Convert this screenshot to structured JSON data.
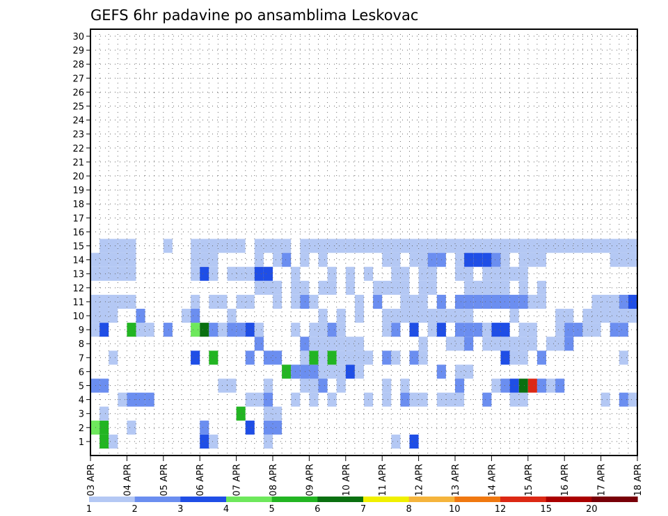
{
  "chart_data": {
    "type": "heatmap",
    "title": "GEFS 6hr padavine po ansamblima Leskovac",
    "xlabel": "",
    "ylabel": "",
    "x_tick_labels": [
      "03 APR",
      "04 APR",
      "05 APR",
      "06 APR",
      "07 APR",
      "08 APR",
      "09 APR",
      "10 APR",
      "11 APR",
      "12 APR",
      "13 APR",
      "14 APR",
      "15 APR",
      "16 APR",
      "17 APR",
      "18 APR"
    ],
    "y_tick_labels": [
      "1",
      "2",
      "3",
      "4",
      "5",
      "6",
      "7",
      "8",
      "9",
      "10",
      "11",
      "12",
      "13",
      "14",
      "15",
      "16",
      "17",
      "18",
      "19",
      "20",
      "21",
      "22",
      "23",
      "24",
      "25",
      "26",
      "27",
      "28",
      "29",
      "30"
    ],
    "xlim": [
      0,
      60
    ],
    "ylim": [
      0,
      30.5
    ],
    "x_unit": "6hr steps from 03 APR 00Z",
    "grid": true,
    "colorbar": {
      "ticks": [
        "1",
        "2",
        "3",
        "4",
        "5",
        "6",
        "7",
        "8",
        "10",
        "12",
        "15",
        "20"
      ],
      "colors": [
        "#b4c8f4",
        "#6b8ef0",
        "#1f4ee6",
        "#6ee85c",
        "#22b522",
        "#0a7010",
        "#f0f000",
        "#f5b43c",
        "#f07810",
        "#dc2814",
        "#aa0000",
        "#780008"
      ]
    },
    "cells": [
      [
        1,
        1,
        5
      ],
      [
        1,
        2,
        1
      ],
      [
        1,
        12,
        3
      ],
      [
        1,
        13,
        1
      ],
      [
        1,
        19,
        1
      ],
      [
        1,
        33,
        1
      ],
      [
        1,
        35,
        3
      ],
      [
        2,
        0,
        4
      ],
      [
        2,
        1,
        5
      ],
      [
        2,
        4,
        1
      ],
      [
        2,
        12,
        2
      ],
      [
        2,
        17,
        3
      ],
      [
        2,
        19,
        2
      ],
      [
        2,
        20,
        2
      ],
      [
        3,
        1,
        1
      ],
      [
        3,
        16,
        5
      ],
      [
        3,
        19,
        1
      ],
      [
        3,
        20,
        1
      ],
      [
        4,
        3,
        1
      ],
      [
        4,
        4,
        2
      ],
      [
        4,
        5,
        2
      ],
      [
        4,
        6,
        2
      ],
      [
        4,
        17,
        1
      ],
      [
        4,
        18,
        1
      ],
      [
        4,
        19,
        2
      ],
      [
        4,
        22,
        1
      ],
      [
        4,
        24,
        1
      ],
      [
        4,
        26,
        1
      ],
      [
        4,
        30,
        1
      ],
      [
        4,
        32,
        1
      ],
      [
        4,
        34,
        2
      ],
      [
        4,
        35,
        1
      ],
      [
        4,
        36,
        1
      ],
      [
        4,
        38,
        1
      ],
      [
        4,
        39,
        1
      ],
      [
        4,
        40,
        1
      ],
      [
        4,
        43,
        2
      ],
      [
        4,
        46,
        1
      ],
      [
        4,
        47,
        1
      ],
      [
        4,
        56,
        1
      ],
      [
        4,
        58,
        2
      ],
      [
        4,
        59,
        1
      ],
      [
        5,
        0,
        2
      ],
      [
        5,
        1,
        2
      ],
      [
        5,
        14,
        1
      ],
      [
        5,
        15,
        1
      ],
      [
        5,
        19,
        1
      ],
      [
        5,
        23,
        1
      ],
      [
        5,
        24,
        1
      ],
      [
        5,
        25,
        2
      ],
      [
        5,
        27,
        1
      ],
      [
        5,
        32,
        1
      ],
      [
        5,
        34,
        1
      ],
      [
        5,
        40,
        2
      ],
      [
        5,
        44,
        1
      ],
      [
        5,
        45,
        2
      ],
      [
        5,
        46,
        3
      ],
      [
        5,
        47,
        6
      ],
      [
        5,
        48,
        10
      ],
      [
        5,
        49,
        2
      ],
      [
        5,
        50,
        1
      ],
      [
        5,
        51,
        2
      ],
      [
        6,
        21,
        5
      ],
      [
        6,
        22,
        2
      ],
      [
        6,
        23,
        2
      ],
      [
        6,
        24,
        2
      ],
      [
        6,
        25,
        1
      ],
      [
        6,
        26,
        1
      ],
      [
        6,
        27,
        1
      ],
      [
        6,
        28,
        3
      ],
      [
        6,
        29,
        1
      ],
      [
        6,
        38,
        2
      ],
      [
        6,
        40,
        1
      ],
      [
        6,
        41,
        1
      ],
      [
        7,
        2,
        1
      ],
      [
        7,
        11,
        3
      ],
      [
        7,
        13,
        5
      ],
      [
        7,
        17,
        2
      ],
      [
        7,
        19,
        2
      ],
      [
        7,
        20,
        2
      ],
      [
        7,
        23,
        1
      ],
      [
        7,
        24,
        5
      ],
      [
        7,
        25,
        1
      ],
      [
        7,
        26,
        5
      ],
      [
        7,
        27,
        1
      ],
      [
        7,
        28,
        1
      ],
      [
        7,
        29,
        1
      ],
      [
        7,
        30,
        1
      ],
      [
        7,
        32,
        2
      ],
      [
        7,
        33,
        1
      ],
      [
        7,
        35,
        2
      ],
      [
        7,
        36,
        1
      ],
      [
        7,
        45,
        3
      ],
      [
        7,
        46,
        1
      ],
      [
        7,
        47,
        1
      ],
      [
        7,
        49,
        2
      ],
      [
        7,
        58,
        1
      ],
      [
        8,
        18,
        2
      ],
      [
        8,
        23,
        2
      ],
      [
        8,
        24,
        1
      ],
      [
        8,
        25,
        1
      ],
      [
        8,
        26,
        1
      ],
      [
        8,
        27,
        1
      ],
      [
        8,
        28,
        1
      ],
      [
        8,
        29,
        1
      ],
      [
        8,
        36,
        1
      ],
      [
        8,
        39,
        1
      ],
      [
        8,
        40,
        1
      ],
      [
        8,
        41,
        2
      ],
      [
        8,
        43,
        1
      ],
      [
        8,
        44,
        1
      ],
      [
        8,
        45,
        1
      ],
      [
        8,
        46,
        1
      ],
      [
        8,
        47,
        1
      ],
      [
        8,
        48,
        1
      ],
      [
        8,
        50,
        1
      ],
      [
        8,
        51,
        1
      ],
      [
        8,
        52,
        2
      ],
      [
        9,
        0,
        1
      ],
      [
        9,
        1,
        3
      ],
      [
        9,
        4,
        5
      ],
      [
        9,
        5,
        1
      ],
      [
        9,
        6,
        1
      ],
      [
        9,
        8,
        2
      ],
      [
        9,
        11,
        4
      ],
      [
        9,
        12,
        6
      ],
      [
        9,
        13,
        2
      ],
      [
        9,
        14,
        1
      ],
      [
        9,
        15,
        2
      ],
      [
        9,
        16,
        2
      ],
      [
        9,
        17,
        3
      ],
      [
        9,
        18,
        1
      ],
      [
        9,
        22,
        1
      ],
      [
        9,
        24,
        1
      ],
      [
        9,
        25,
        1
      ],
      [
        9,
        26,
        2
      ],
      [
        9,
        27,
        1
      ],
      [
        9,
        32,
        1
      ],
      [
        9,
        33,
        2
      ],
      [
        9,
        35,
        3
      ],
      [
        9,
        37,
        1
      ],
      [
        9,
        38,
        3
      ],
      [
        9,
        40,
        2
      ],
      [
        9,
        41,
        2
      ],
      [
        9,
        42,
        2
      ],
      [
        9,
        43,
        1
      ],
      [
        9,
        44,
        3
      ],
      [
        9,
        45,
        3
      ],
      [
        9,
        47,
        1
      ],
      [
        9,
        48,
        1
      ],
      [
        9,
        51,
        1
      ],
      [
        9,
        52,
        2
      ],
      [
        9,
        53,
        2
      ],
      [
        9,
        54,
        1
      ],
      [
        9,
        55,
        1
      ],
      [
        9,
        57,
        2
      ],
      [
        9,
        58,
        2
      ],
      [
        10,
        0,
        1
      ],
      [
        10,
        1,
        1
      ],
      [
        10,
        2,
        1
      ],
      [
        10,
        5,
        2
      ],
      [
        10,
        10,
        1
      ],
      [
        10,
        11,
        2
      ],
      [
        10,
        15,
        1
      ],
      [
        10,
        25,
        1
      ],
      [
        10,
        27,
        1
      ],
      [
        10,
        29,
        1
      ],
      [
        10,
        32,
        1
      ],
      [
        10,
        33,
        1
      ],
      [
        10,
        34,
        1
      ],
      [
        10,
        35,
        1
      ],
      [
        10,
        36,
        1
      ],
      [
        10,
        37,
        1
      ],
      [
        10,
        38,
        1
      ],
      [
        10,
        39,
        1
      ],
      [
        10,
        40,
        1
      ],
      [
        10,
        41,
        1
      ],
      [
        10,
        46,
        1
      ],
      [
        10,
        51,
        1
      ],
      [
        10,
        52,
        1
      ],
      [
        10,
        54,
        1
      ],
      [
        10,
        55,
        1
      ],
      [
        10,
        56,
        1
      ],
      [
        10,
        57,
        1
      ],
      [
        10,
        58,
        1
      ],
      [
        10,
        59,
        1
      ],
      [
        11,
        0,
        1
      ],
      [
        11,
        1,
        1
      ],
      [
        11,
        2,
        1
      ],
      [
        11,
        3,
        1
      ],
      [
        11,
        4,
        1
      ],
      [
        11,
        11,
        1
      ],
      [
        11,
        13,
        1
      ],
      [
        11,
        14,
        1
      ],
      [
        11,
        16,
        1
      ],
      [
        11,
        17,
        1
      ],
      [
        11,
        20,
        1
      ],
      [
        11,
        22,
        1
      ],
      [
        11,
        23,
        2
      ],
      [
        11,
        24,
        1
      ],
      [
        11,
        29,
        1
      ],
      [
        11,
        31,
        2
      ],
      [
        11,
        34,
        1
      ],
      [
        11,
        35,
        1
      ],
      [
        11,
        36,
        1
      ],
      [
        11,
        38,
        2
      ],
      [
        11,
        40,
        2
      ],
      [
        11,
        41,
        2
      ],
      [
        11,
        42,
        2
      ],
      [
        11,
        43,
        2
      ],
      [
        11,
        44,
        2
      ],
      [
        11,
        45,
        2
      ],
      [
        11,
        46,
        2
      ],
      [
        11,
        47,
        2
      ],
      [
        11,
        48,
        1
      ],
      [
        11,
        49,
        1
      ],
      [
        11,
        55,
        1
      ],
      [
        11,
        56,
        1
      ],
      [
        11,
        57,
        1
      ],
      [
        11,
        58,
        2
      ],
      [
        11,
        59,
        3
      ],
      [
        12,
        18,
        1
      ],
      [
        12,
        19,
        1
      ],
      [
        12,
        20,
        1
      ],
      [
        12,
        22,
        1
      ],
      [
        12,
        23,
        1
      ],
      [
        12,
        25,
        1
      ],
      [
        12,
        26,
        1
      ],
      [
        12,
        28,
        1
      ],
      [
        12,
        31,
        1
      ],
      [
        12,
        32,
        1
      ],
      [
        12,
        33,
        1
      ],
      [
        12,
        34,
        1
      ],
      [
        12,
        36,
        1
      ],
      [
        12,
        37,
        1
      ],
      [
        12,
        41,
        1
      ],
      [
        12,
        42,
        1
      ],
      [
        12,
        43,
        1
      ],
      [
        12,
        44,
        1
      ],
      [
        12,
        45,
        1
      ],
      [
        12,
        47,
        1
      ],
      [
        12,
        49,
        1
      ],
      [
        13,
        0,
        1
      ],
      [
        13,
        1,
        1
      ],
      [
        13,
        2,
        1
      ],
      [
        13,
        3,
        1
      ],
      [
        13,
        4,
        1
      ],
      [
        13,
        11,
        1
      ],
      [
        13,
        12,
        3
      ],
      [
        13,
        13,
        1
      ],
      [
        13,
        15,
        1
      ],
      [
        13,
        16,
        1
      ],
      [
        13,
        17,
        1
      ],
      [
        13,
        18,
        3
      ],
      [
        13,
        19,
        3
      ],
      [
        13,
        22,
        1
      ],
      [
        13,
        26,
        1
      ],
      [
        13,
        28,
        1
      ],
      [
        13,
        30,
        1
      ],
      [
        13,
        33,
        1
      ],
      [
        13,
        34,
        1
      ],
      [
        13,
        36,
        1
      ],
      [
        13,
        37,
        1
      ],
      [
        13,
        40,
        1
      ],
      [
        13,
        41,
        1
      ],
      [
        13,
        43,
        1
      ],
      [
        13,
        44,
        1
      ],
      [
        13,
        45,
        1
      ],
      [
        13,
        46,
        1
      ],
      [
        13,
        47,
        1
      ],
      [
        14,
        0,
        1
      ],
      [
        14,
        1,
        1
      ],
      [
        14,
        2,
        1
      ],
      [
        14,
        3,
        1
      ],
      [
        14,
        4,
        1
      ],
      [
        14,
        11,
        1
      ],
      [
        14,
        12,
        1
      ],
      [
        14,
        13,
        1
      ],
      [
        14,
        18,
        1
      ],
      [
        14,
        20,
        1
      ],
      [
        14,
        21,
        2
      ],
      [
        14,
        23,
        1
      ],
      [
        14,
        25,
        1
      ],
      [
        14,
        32,
        1
      ],
      [
        14,
        33,
        1
      ],
      [
        14,
        35,
        1
      ],
      [
        14,
        36,
        1
      ],
      [
        14,
        37,
        2
      ],
      [
        14,
        38,
        2
      ],
      [
        14,
        40,
        1
      ],
      [
        14,
        41,
        3
      ],
      [
        14,
        42,
        3
      ],
      [
        14,
        43,
        3
      ],
      [
        14,
        44,
        2
      ],
      [
        14,
        45,
        1
      ],
      [
        14,
        47,
        1
      ],
      [
        14,
        48,
        1
      ],
      [
        14,
        49,
        1
      ],
      [
        14,
        57,
        1
      ],
      [
        14,
        58,
        1
      ],
      [
        14,
        59,
        1
      ],
      [
        15,
        1,
        1
      ],
      [
        15,
        2,
        1
      ],
      [
        15,
        3,
        1
      ],
      [
        15,
        4,
        1
      ],
      [
        15,
        8,
        1
      ],
      [
        15,
        11,
        1
      ],
      [
        15,
        12,
        1
      ],
      [
        15,
        13,
        1
      ],
      [
        15,
        14,
        1
      ],
      [
        15,
        15,
        1
      ],
      [
        15,
        16,
        1
      ],
      [
        15,
        18,
        1
      ],
      [
        15,
        19,
        1
      ],
      [
        15,
        20,
        1
      ],
      [
        15,
        21,
        1
      ],
      [
        15,
        23,
        1
      ],
      [
        15,
        24,
        1
      ],
      [
        15,
        25,
        1
      ],
      [
        15,
        26,
        1
      ],
      [
        15,
        27,
        1
      ],
      [
        15,
        28,
        1
      ],
      [
        15,
        29,
        1
      ],
      [
        15,
        30,
        1
      ],
      [
        15,
        31,
        1
      ],
      [
        15,
        32,
        1
      ],
      [
        15,
        33,
        1
      ],
      [
        15,
        34,
        1
      ],
      [
        15,
        35,
        1
      ],
      [
        15,
        36,
        1
      ],
      [
        15,
        37,
        1
      ],
      [
        15,
        38,
        1
      ],
      [
        15,
        39,
        1
      ],
      [
        15,
        40,
        1
      ],
      [
        15,
        41,
        1
      ],
      [
        15,
        42,
        1
      ],
      [
        15,
        43,
        1
      ],
      [
        15,
        44,
        1
      ],
      [
        15,
        45,
        1
      ],
      [
        15,
        46,
        1
      ],
      [
        15,
        47,
        1
      ],
      [
        15,
        48,
        1
      ],
      [
        15,
        49,
        1
      ],
      [
        15,
        50,
        1
      ],
      [
        15,
        51,
        1
      ],
      [
        15,
        52,
        1
      ],
      [
        15,
        53,
        1
      ],
      [
        15,
        54,
        1
      ],
      [
        15,
        55,
        1
      ],
      [
        15,
        56,
        1
      ],
      [
        15,
        57,
        1
      ],
      [
        15,
        58,
        1
      ],
      [
        15,
        59,
        1
      ]
    ],
    "note_cells_format": "[row_index_from_bottom_0to15, x_step, color_level]"
  }
}
